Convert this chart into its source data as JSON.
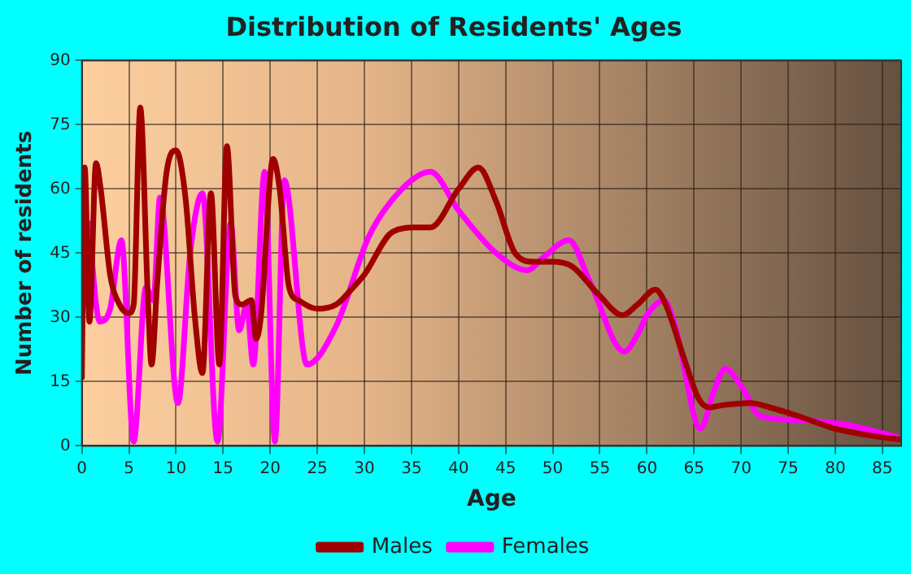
{
  "chart_data": {
    "type": "line",
    "title": "Distribution of Residents' Ages",
    "xlabel": "Age",
    "ylabel": "Number of residents",
    "xlim": [
      0,
      87
    ],
    "xticks": [
      0,
      5,
      10,
      15,
      20,
      25,
      30,
      35,
      40,
      45,
      50,
      55,
      60,
      65,
      70,
      75,
      80,
      85
    ],
    "ylim": [
      0,
      90
    ],
    "yticks": [
      0,
      15,
      30,
      45,
      60,
      75,
      90
    ],
    "grid": true,
    "legend": "bottom",
    "marker": "none",
    "series": [
      {
        "name": "Males",
        "color": "#a00000",
        "x": [
          0,
          0.3,
          0.8,
          1.5,
          2,
          3,
          4,
          5,
          5.5,
          6.2,
          7,
          7.4,
          8,
          9,
          10,
          11,
          12,
          12.8,
          13.7,
          14.6,
          15.4,
          16.3,
          17,
          18,
          18.5,
          19,
          20.3,
          21,
          22,
          23,
          25,
          27,
          28.8,
          30,
          33,
          35.5,
          37,
          40,
          42.1,
          44,
          46,
          48,
          50,
          52,
          55,
          57.4,
          59,
          60.9,
          62,
          64,
          65.5,
          66.6,
          68,
          71,
          73,
          76,
          80,
          85,
          87
        ],
        "values": [
          16,
          65,
          29,
          66,
          60,
          40,
          33,
          31,
          33,
          79,
          35,
          19,
          38,
          64,
          69,
          58,
          30,
          17,
          59,
          19,
          70,
          35,
          33,
          34,
          25,
          30,
          67,
          60,
          37,
          34,
          32,
          33,
          37,
          40,
          50,
          51,
          51,
          60,
          65,
          57,
          45,
          43,
          43,
          42,
          35,
          30.5,
          33,
          36.5,
          33,
          20,
          11,
          9,
          9.5,
          10,
          9,
          7,
          4,
          2,
          1.5
        ]
      },
      {
        "name": "Females",
        "color": "#ff00ff",
        "x": [
          0.7,
          1.9,
          3,
          4.2,
          5.5,
          6.8,
          7.6,
          8.3,
          10.2,
          11.5,
          12.8,
          14.4,
          15.8,
          16.7,
          17.5,
          18.2,
          19.4,
          20.5,
          21.5,
          23.9,
          27,
          30.5,
          34,
          37,
          40,
          44,
          47.3,
          49,
          51.7,
          54,
          57.6,
          59,
          60,
          61.8,
          63,
          65.7,
          67,
          68.3,
          70,
          72,
          76,
          81,
          84,
          86.6
        ],
        "values": [
          52,
          29,
          32,
          48,
          1,
          37,
          34,
          58,
          10,
          45,
          59,
          1,
          52,
          27,
          33,
          19,
          64,
          1,
          62,
          19,
          28,
          49,
          60,
          64,
          55,
          45,
          41,
          44,
          48,
          38,
          22,
          26,
          30.5,
          34,
          28,
          4,
          12,
          18,
          14,
          7,
          6,
          5,
          3.5,
          2
        ]
      }
    ]
  }
}
